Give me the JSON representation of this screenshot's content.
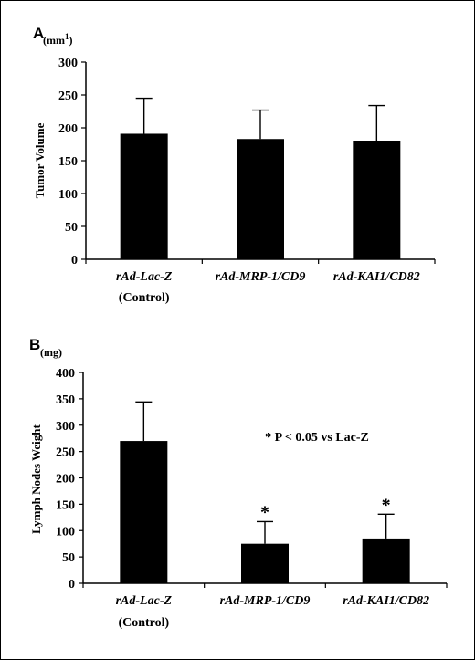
{
  "chart_data": [
    {
      "type": "bar",
      "panel_label": "A",
      "unit": "(mm",
      "unit_sup": "1",
      "unit_close": ")",
      "ylabel": "Tumor Volume",
      "ylim": [
        0,
        300
      ],
      "yticks": [
        0,
        50,
        100,
        150,
        200,
        250,
        300
      ],
      "categories": [
        {
          "line1": "rAd-Lac-Z",
          "line2": "(Control)"
        },
        {
          "line1": "rAd-MRP-1/CD9",
          "line2": ""
        },
        {
          "line1": "rAd-KAI1/CD82",
          "line2": ""
        }
      ],
      "values": [
        191,
        183,
        180
      ],
      "error_upper": [
        245,
        227,
        234
      ],
      "significance": [
        "",
        "",
        ""
      ],
      "annotation": "",
      "bar_color": "#000000",
      "grid": false
    },
    {
      "type": "bar",
      "panel_label": "B",
      "unit": "(mg)",
      "unit_sup": "",
      "unit_close": "",
      "ylabel": "Lymph Nodes Weight",
      "ylim": [
        0,
        400
      ],
      "yticks": [
        0,
        50,
        100,
        150,
        200,
        250,
        300,
        350,
        400
      ],
      "categories": [
        {
          "line1": "rAd-Lac-Z",
          "line2": "(Control)"
        },
        {
          "line1": "rAd-MRP-1/CD9",
          "line2": ""
        },
        {
          "line1": "rAd-KAI1/CD82",
          "line2": ""
        }
      ],
      "values": [
        270,
        75,
        85
      ],
      "error_upper": [
        344,
        117,
        131
      ],
      "significance": [
        "",
        "*",
        "*"
      ],
      "annotation": "* P < 0.05 vs Lac-Z",
      "bar_color": "#000000",
      "grid": false
    }
  ]
}
